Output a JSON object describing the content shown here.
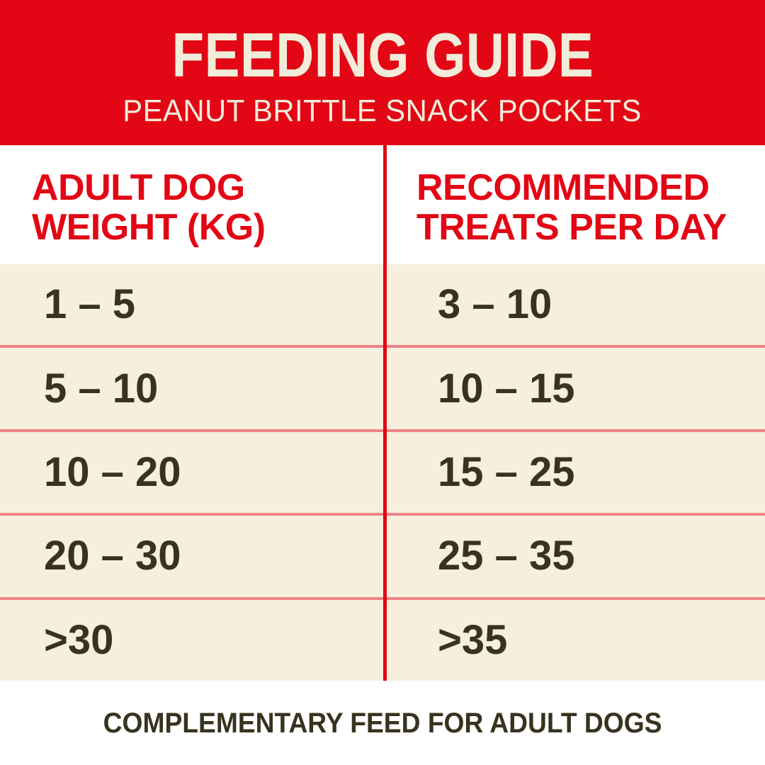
{
  "header": {
    "title": "FEEDING GUIDE",
    "subtitle": "PEANUT BRITTLE SNACK POCKETS"
  },
  "table": {
    "columns": [
      {
        "label": "ADULT DOG WEIGHT (KG)"
      },
      {
        "label": "RECOMMENDED TREATS PER DAY"
      }
    ],
    "rows": [
      {
        "weight": "1 – 5",
        "treats": "3 – 10"
      },
      {
        "weight": "5 – 10",
        "treats": "10 – 15"
      },
      {
        "weight": "10 – 20",
        "treats": "15 – 25"
      },
      {
        "weight": "20 – 30",
        "treats": "25 – 35"
      },
      {
        "weight": ">30",
        "treats": ">35"
      }
    ]
  },
  "footer": {
    "note": "COMPLEMENTARY FEED FOR ADULT DOGS"
  },
  "colors": {
    "brand_red": "#E30614",
    "divider_salmon": "#EE8287",
    "row_cream": "#F6EFDE",
    "title_cream": "#F2ECDB",
    "text_dark": "#37331F"
  },
  "chart_data": {
    "type": "table",
    "title": "FEEDING GUIDE",
    "subtitle": "PEANUT BRITTLE SNACK POCKETS",
    "columns": [
      "ADULT DOG WEIGHT (KG)",
      "RECOMMENDED TREATS PER DAY"
    ],
    "rows": [
      [
        "1 – 5",
        "3 – 10"
      ],
      [
        "5 – 10",
        "10 – 15"
      ],
      [
        "10 – 20",
        "15 – 25"
      ],
      [
        "20 – 30",
        "25 – 35"
      ],
      [
        ">30",
        ">35"
      ]
    ],
    "footnote": "COMPLEMENTARY FEED FOR ADULT DOGS"
  }
}
